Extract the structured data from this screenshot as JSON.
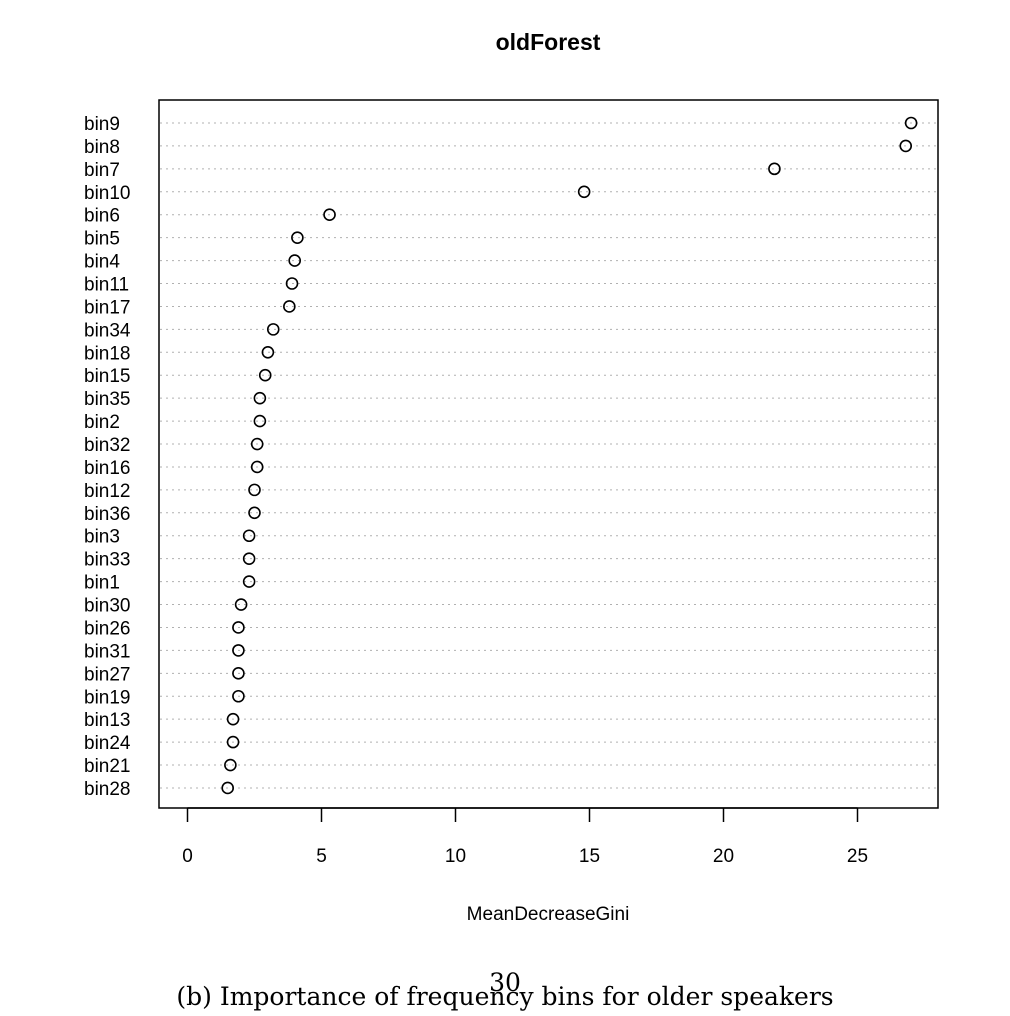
{
  "chart_data": {
    "type": "scatter",
    "title": "oldForest",
    "xlabel": "MeanDecreaseGini",
    "ylabel": "",
    "xlim": [
      0,
      28
    ],
    "xticks": [
      0,
      5,
      10,
      15,
      20,
      25
    ],
    "grid": "dotted horizontal lines per category",
    "legend": "none",
    "categories": [
      "bin9",
      "bin8",
      "bin7",
      "bin10",
      "bin6",
      "bin5",
      "bin4",
      "bin11",
      "bin17",
      "bin34",
      "bin18",
      "bin15",
      "bin35",
      "bin2",
      "bin32",
      "bin16",
      "bin12",
      "bin36",
      "bin3",
      "bin33",
      "bin1",
      "bin30",
      "bin26",
      "bin31",
      "bin27",
      "bin19",
      "bin13",
      "bin24",
      "bin21",
      "bin28"
    ],
    "values": [
      27.0,
      26.8,
      21.9,
      14.8,
      5.3,
      4.1,
      4.0,
      3.9,
      3.8,
      3.2,
      3.0,
      2.9,
      2.7,
      2.7,
      2.6,
      2.6,
      2.5,
      2.5,
      2.3,
      2.3,
      2.3,
      2.0,
      1.9,
      1.9,
      1.9,
      1.9,
      1.7,
      1.7,
      1.6,
      1.5
    ]
  },
  "caption": "(b) Importance of frequency bins for older speakers",
  "page_number": "30"
}
